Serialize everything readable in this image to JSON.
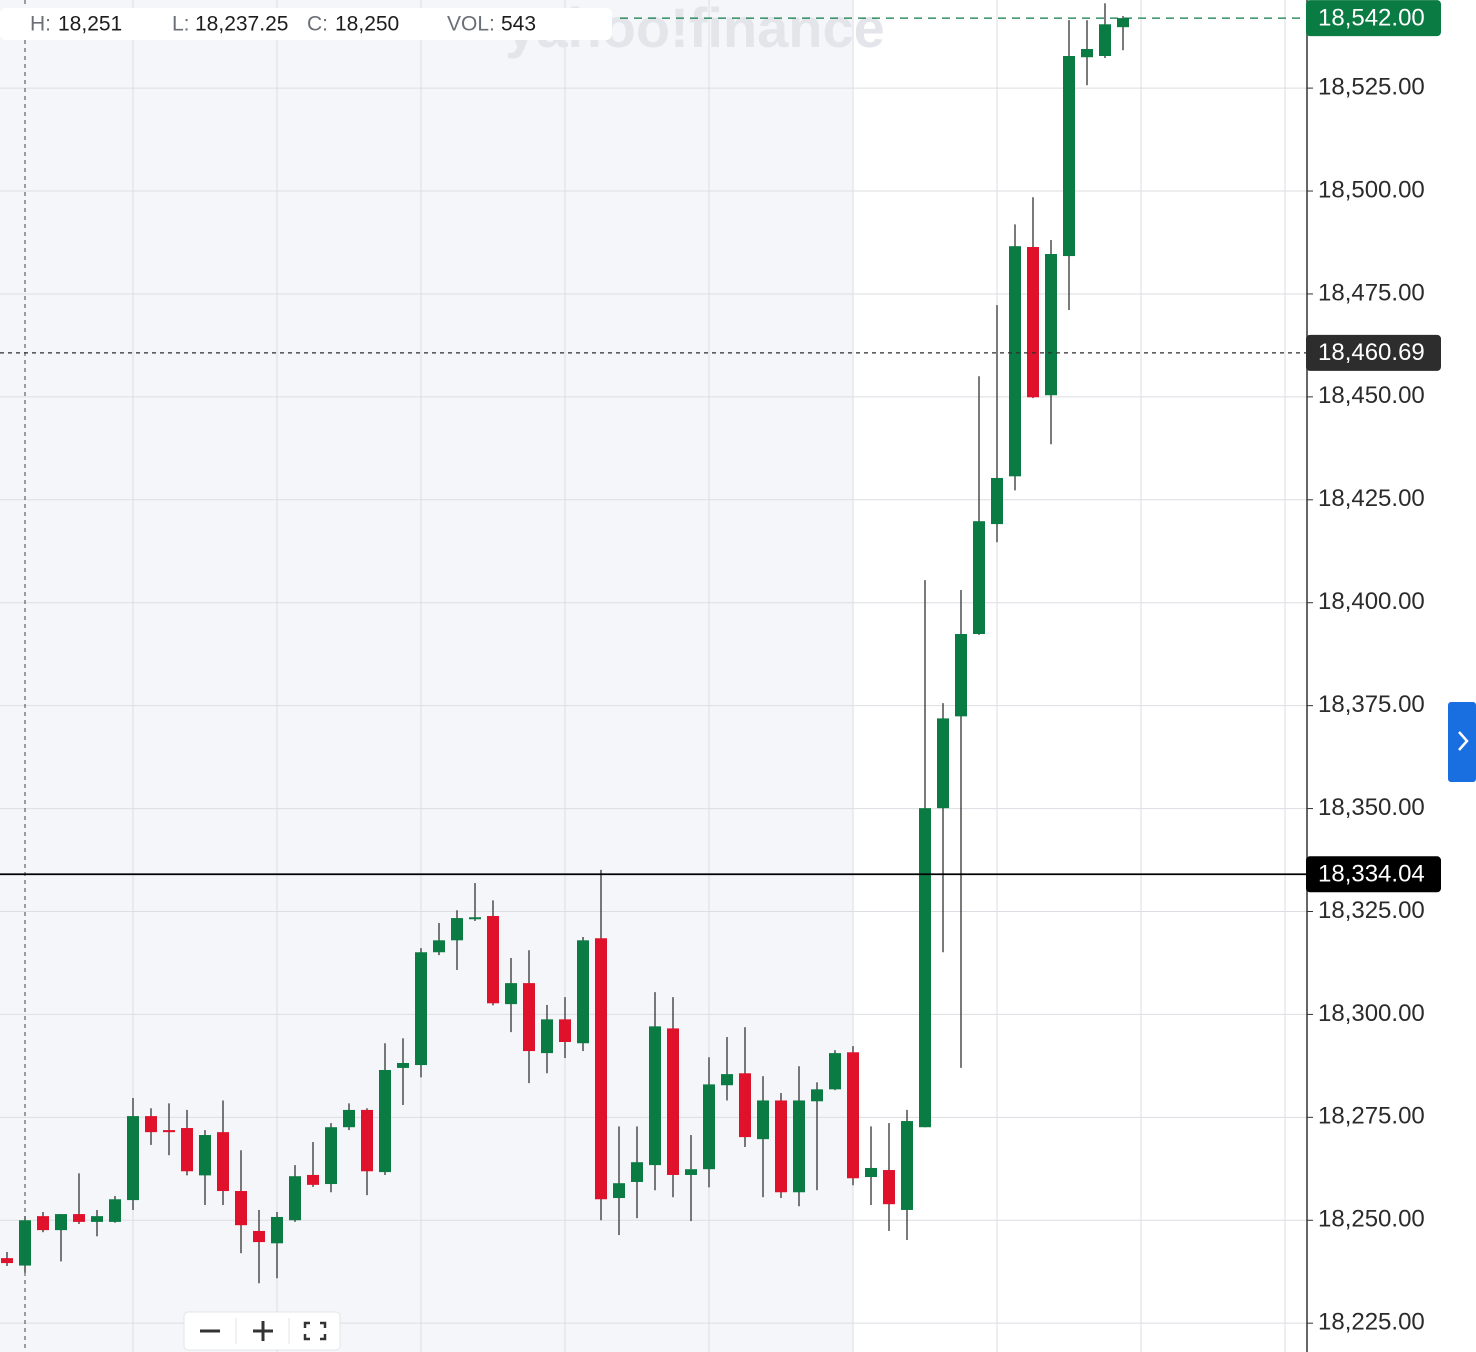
{
  "chart_data": {
    "type": "candlestick",
    "header": [
      {
        "label": "H:",
        "value": "18,251"
      },
      {
        "label": "L:",
        "value": "18,237.25"
      },
      {
        "label": "C:",
        "value": "18,250"
      },
      {
        "label": "VOL:",
        "value": "543"
      }
    ],
    "watermark": "yahoo!finance",
    "up_color": "#0a7b43",
    "down_color": "#e0112b",
    "open": [
      18240.8,
      18239,
      18251,
      18247.6,
      18251.5,
      18249.6,
      18249.6,
      18254.9,
      18275.3,
      18271.9,
      18272.4,
      18260.9,
      18271.4,
      18257.1,
      18247.4,
      18244.4,
      18250,
      18261,
      18258.8,
      18272.6,
      18276.8,
      18261.7,
      18287,
      18287.7,
      18315.1,
      18318,
      18323.2,
      18323.9,
      18302.5,
      18307.6,
      18290.6,
      18298.8,
      18293,
      18318.5,
      18255.4,
      18259.3,
      18263.4,
      18296.6,
      18261,
      18262.4,
      18282.8,
      18285.7,
      18269.7,
      18279.1,
      18256.8,
      18278.9,
      18281.8,
      18290.8,
      18260.5,
      18262.2,
      18252.5,
      18272.6,
      18350.1,
      18372.4,
      18392.4,
      18419.1,
      18430.7,
      18486.4,
      18450.4,
      18484.2,
      18532.5,
      18532.8,
      18539.8
    ],
    "high": [
      18242.3,
      18251,
      18252,
      18251.5,
      18261.4,
      18252.5,
      18255.9,
      18279.7,
      18277.2,
      18278.4,
      18276.8,
      18271.9,
      18279.1,
      18267,
      18252.5,
      18252,
      18263.4,
      18269,
      18273.6,
      18278.4,
      18277.2,
      18293,
      18294.2,
      18316.1,
      18322.2,
      18325.3,
      18331.9,
      18327.7,
      18313.7,
      18315.6,
      18302.3,
      18304.2,
      18318.8,
      18335.1,
      18272.8,
      18272.8,
      18305.4,
      18304.2,
      18270.7,
      18289.6,
      18294.5,
      18296.9,
      18285,
      18280.9,
      18287.4,
      18283.5,
      18291.3,
      18292.3,
      18272.8,
      18273.6,
      18276.8,
      18405.5,
      18375.6,
      18403.1,
      18455,
      18472.3,
      18491.9,
      18498.5,
      18488.1,
      18541.5,
      18541.5,
      18545.6,
      18542.5
    ],
    "low": [
      18238.9,
      18237.25,
      18247.1,
      18240,
      18249.1,
      18246.1,
      18249.4,
      18252.5,
      18268.3,
      18265.8,
      18260.9,
      18253.7,
      18253.7,
      18242,
      18234.7,
      18235.9,
      18249.6,
      18258.1,
      18256.8,
      18271.9,
      18256.1,
      18261,
      18278,
      18284.7,
      18314.4,
      18310.8,
      18322.7,
      18302.2,
      18295.7,
      18283.3,
      18285.7,
      18289.4,
      18291.1,
      18250,
      18246.4,
      18250.5,
      18257.3,
      18255.6,
      18249.8,
      18258,
      18279.1,
      18267.8,
      18255.6,
      18255.4,
      18253.4,
      18257.3,
      18281.6,
      18258.5,
      18253.7,
      18247.4,
      18245.2,
      18272.6,
      18315.1,
      18287,
      18392.2,
      18414.7,
      18427.3,
      18449.7,
      18438.5,
      18471.1,
      18525.7,
      18532.3,
      18534.2
    ],
    "close": [
      18239.6,
      18250,
      18247.6,
      18251.5,
      18249.6,
      18251,
      18255.1,
      18275.3,
      18271.4,
      18271.4,
      18261.9,
      18270.7,
      18257.1,
      18248.8,
      18244.7,
      18250.8,
      18260.7,
      18258.6,
      18272.6,
      18276.8,
      18261.9,
      18286.5,
      18288.2,
      18315.1,
      18318,
      18323.4,
      18323.6,
      18302.7,
      18307.6,
      18291.1,
      18298.8,
      18293.3,
      18318,
      18255.1,
      18259,
      18264.1,
      18297.1,
      18261,
      18262.4,
      18283,
      18285.5,
      18270.2,
      18279.1,
      18256.8,
      18279.1,
      18281.8,
      18290.6,
      18260.2,
      18262.7,
      18253.9,
      18274.1,
      18350.1,
      18371.9,
      18392.4,
      18419.8,
      18430.3,
      18486.6,
      18449.9,
      18484.7,
      18532.8,
      18534.5,
      18540.5,
      18542
    ],
    "ylim": [
      18218,
      18546.4
    ],
    "yticks": [
      {
        "value": 18225,
        "label": "18,225.00"
      },
      {
        "value": 18250,
        "label": "18,250.00"
      },
      {
        "value": 18275,
        "label": "18,275.00"
      },
      {
        "value": 18300,
        "label": "18,300.00"
      },
      {
        "value": 18325,
        "label": "18,325.00"
      },
      {
        "value": 18350,
        "label": "18,350.00"
      },
      {
        "value": 18375,
        "label": "18,375.00"
      },
      {
        "value": 18400,
        "label": "18,400.00"
      },
      {
        "value": 18425,
        "label": "18,425.00"
      },
      {
        "value": 18450,
        "label": "18,450.00"
      },
      {
        "value": 18475,
        "label": "18,475.00"
      },
      {
        "value": 18500,
        "label": "18,500.00"
      },
      {
        "value": 18525,
        "label": "18,525.00"
      }
    ],
    "price_lines": [
      {
        "value": 18542,
        "label": "18,542.00",
        "color": "#0a7b43",
        "style": "dashed"
      },
      {
        "value": 18460.69,
        "label": "18,460.69",
        "color": "#2d2d2d",
        "style": "dotted"
      },
      {
        "value": 18334.04,
        "label": "18,334.04",
        "color": "#000000",
        "style": "solid"
      }
    ],
    "grid": true
  }
}
